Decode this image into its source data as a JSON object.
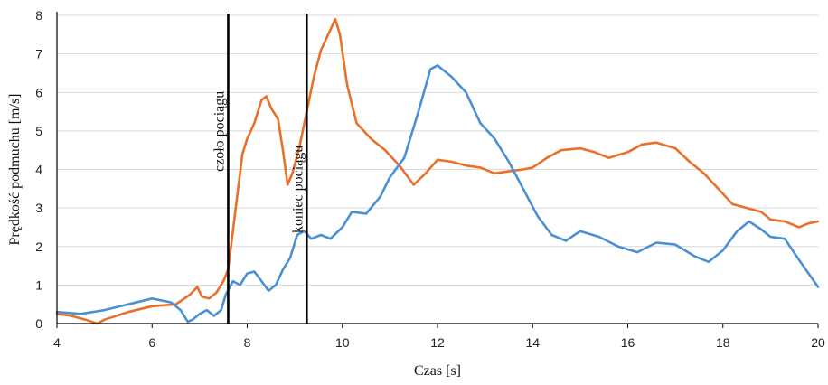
{
  "chart_data": {
    "type": "line",
    "title": "",
    "xlabel": "Czas [s]",
    "ylabel": "Prędkość podmuchu [m/s]",
    "xlim": [
      4,
      20
    ],
    "ylim": [
      0,
      8
    ],
    "xticks": [
      4,
      6,
      8,
      10,
      12,
      14,
      16,
      18,
      20
    ],
    "yticks": [
      0,
      1,
      2,
      3,
      4,
      5,
      6,
      7,
      8
    ],
    "grid": "horizontal",
    "colors": {
      "orange": "#E8702A",
      "blue": "#4A90D2",
      "marker": "#000000",
      "grid": "#d9d9d9"
    },
    "markers": [
      {
        "x": 7.6,
        "label": "czoło pociągu"
      },
      {
        "x": 9.25,
        "label": "koniec pociągu"
      }
    ],
    "series": [
      {
        "color": "orange",
        "x": [
          4.0,
          4.3,
          4.6,
          4.85,
          5.0,
          5.5,
          6.0,
          6.5,
          6.8,
          6.95,
          7.05,
          7.2,
          7.35,
          7.5,
          7.6,
          7.75,
          7.9,
          8.0,
          8.15,
          8.3,
          8.4,
          8.5,
          8.65,
          8.75,
          8.85,
          8.95,
          9.1,
          9.25,
          9.4,
          9.55,
          9.7,
          9.85,
          9.95,
          10.1,
          10.3,
          10.6,
          10.9,
          11.2,
          11.5,
          11.75,
          12.0,
          12.3,
          12.6,
          12.9,
          13.2,
          13.5,
          13.8,
          14.0,
          14.3,
          14.6,
          15.0,
          15.3,
          15.6,
          16.0,
          16.3,
          16.6,
          17.0,
          17.3,
          17.6,
          17.9,
          18.2,
          18.5,
          18.8,
          19.0,
          19.3,
          19.6,
          19.8,
          20.0
        ],
        "y": [
          0.25,
          0.2,
          0.1,
          0.0,
          0.1,
          0.3,
          0.45,
          0.5,
          0.75,
          0.95,
          0.7,
          0.65,
          0.8,
          1.1,
          1.4,
          2.9,
          4.4,
          4.8,
          5.2,
          5.8,
          5.9,
          5.6,
          5.3,
          4.5,
          3.6,
          3.9,
          4.6,
          5.5,
          6.4,
          7.1,
          7.5,
          7.9,
          7.5,
          6.2,
          5.2,
          4.8,
          4.5,
          4.1,
          3.6,
          3.9,
          4.25,
          4.2,
          4.1,
          4.05,
          3.9,
          3.95,
          4.0,
          4.05,
          4.3,
          4.5,
          4.55,
          4.45,
          4.3,
          4.45,
          4.65,
          4.7,
          4.55,
          4.2,
          3.9,
          3.5,
          3.1,
          3.0,
          2.9,
          2.7,
          2.65,
          2.5,
          2.6,
          2.65
        ]
      },
      {
        "color": "blue",
        "x": [
          4.0,
          4.5,
          5.0,
          5.5,
          6.0,
          6.4,
          6.6,
          6.75,
          6.85,
          7.0,
          7.15,
          7.3,
          7.45,
          7.55,
          7.7,
          7.85,
          8.0,
          8.15,
          8.3,
          8.45,
          8.6,
          8.75,
          8.9,
          9.05,
          9.2,
          9.35,
          9.55,
          9.75,
          10.0,
          10.2,
          10.5,
          10.8,
          11.0,
          11.3,
          11.6,
          11.85,
          12.0,
          12.3,
          12.6,
          12.9,
          13.2,
          13.5,
          13.8,
          14.1,
          14.4,
          14.7,
          15.0,
          15.4,
          15.8,
          16.2,
          16.6,
          17.0,
          17.4,
          17.7,
          18.0,
          18.3,
          18.55,
          18.8,
          19.0,
          19.3,
          19.6,
          19.8,
          20.0
        ],
        "y": [
          0.3,
          0.25,
          0.35,
          0.5,
          0.65,
          0.55,
          0.35,
          0.05,
          0.1,
          0.25,
          0.35,
          0.2,
          0.35,
          0.75,
          1.1,
          1.0,
          1.3,
          1.35,
          1.1,
          0.85,
          1.0,
          1.4,
          1.7,
          2.3,
          2.4,
          2.2,
          2.3,
          2.2,
          2.5,
          2.9,
          2.85,
          3.3,
          3.8,
          4.3,
          5.5,
          6.6,
          6.7,
          6.4,
          6.0,
          5.2,
          4.8,
          4.2,
          3.5,
          2.8,
          2.3,
          2.15,
          2.4,
          2.25,
          2.0,
          1.85,
          2.1,
          2.05,
          1.75,
          1.6,
          1.9,
          2.4,
          2.65,
          2.45,
          2.25,
          2.2,
          1.65,
          1.3,
          0.95
        ]
      }
    ]
  }
}
